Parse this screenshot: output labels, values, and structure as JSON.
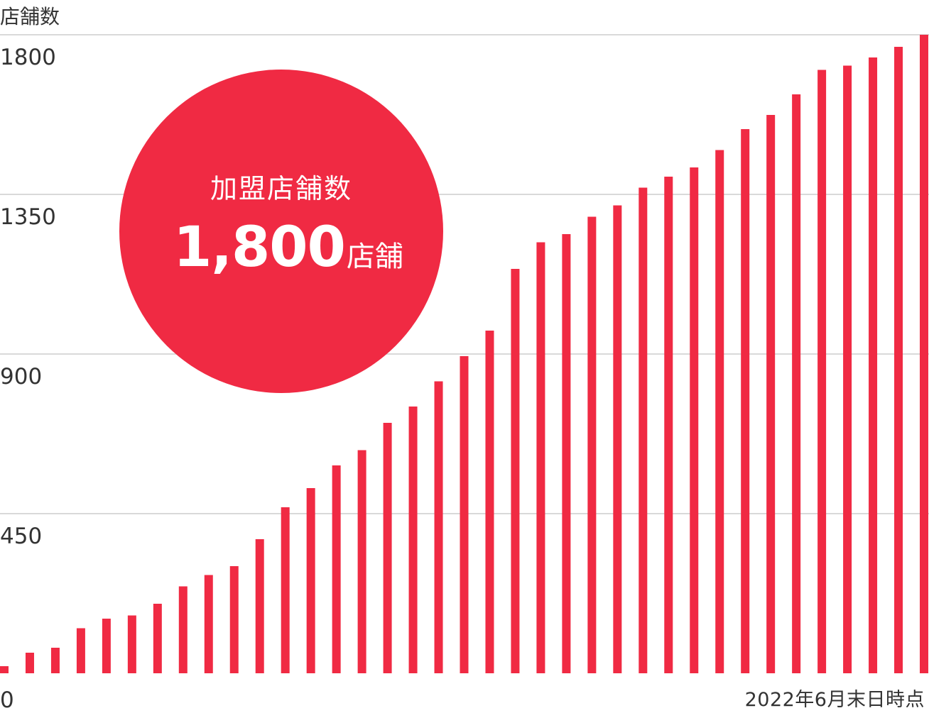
{
  "colors": {
    "bar": "#f02a43",
    "grid": "#d9d9d9",
    "text": "#333333",
    "badge": "#f02a43"
  },
  "badge": {
    "label": "加盟店舗数",
    "value": "1,800",
    "unit": "店舗"
  },
  "chart_data": {
    "type": "bar",
    "ylabel": "店舗数",
    "x_note": "2022年6月末日時点",
    "ylim": [
      0,
      1800
    ],
    "yticks": [
      "0",
      "450",
      "900",
      "1350",
      "1800"
    ],
    "ytick_values": [
      0,
      450,
      900,
      1350,
      1800
    ],
    "grid": true,
    "values": [
      20,
      58,
      72,
      127,
      154,
      163,
      196,
      245,
      277,
      302,
      378,
      468,
      522,
      586,
      629,
      706,
      752,
      823,
      894,
      966,
      1140,
      1215,
      1238,
      1287,
      1319,
      1369,
      1400,
      1426,
      1475,
      1534,
      1574,
      1632,
      1701,
      1713,
      1736,
      1766,
      1800
    ]
  }
}
